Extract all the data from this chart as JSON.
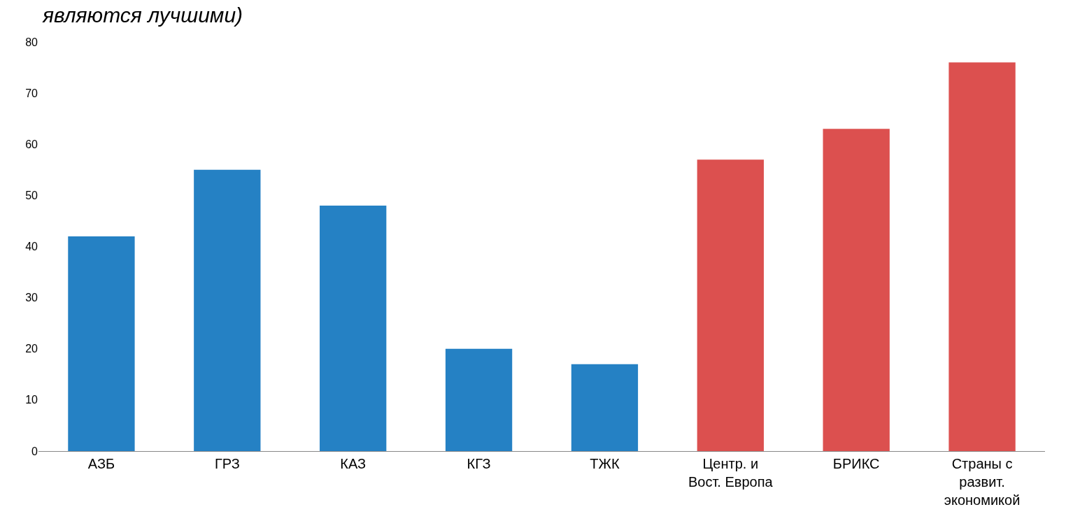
{
  "chart_data": {
    "type": "bar",
    "title": "являются лучшими)",
    "categories": [
      "АЗБ",
      "ГРЗ",
      "КАЗ",
      "КГЗ",
      "ТЖК",
      "Центр. и Вост. Европа",
      "БРИКС",
      "Страны с развит. экономикой"
    ],
    "values": [
      42,
      55,
      48,
      20,
      17,
      57,
      63,
      76
    ],
    "colors": [
      "#2581c4",
      "#2581c4",
      "#2581c4",
      "#2581c4",
      "#2581c4",
      "#dc504f",
      "#dc504f",
      "#dc504f"
    ],
    "ylim": [
      0,
      80
    ],
    "yticks": [
      0,
      10,
      20,
      30,
      40,
      50,
      60,
      70,
      80
    ]
  }
}
